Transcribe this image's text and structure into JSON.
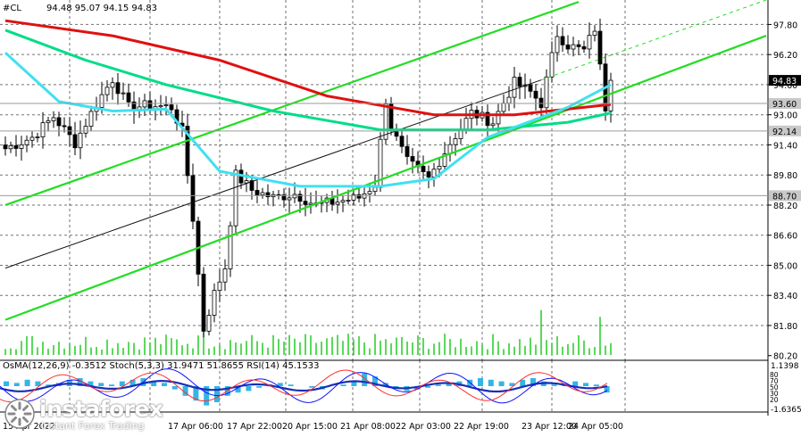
{
  "chart_data": {
    "type": "candlestick",
    "symbol": "#CL",
    "ohlc_header": "94.48 95.07 94.15 94.83",
    "y_ticks": [
      97.8,
      96.2,
      94.6,
      93.0,
      91.4,
      89.8,
      88.2,
      86.6,
      85.0,
      83.4,
      81.8,
      80.2
    ],
    "y_tick_labels": [
      "97.80",
      "96.20",
      "94.60",
      "93.00",
      "91.40",
      "89.80",
      "88.20",
      "86.60",
      "85.00",
      "83.40",
      "81.80",
      "80.20"
    ],
    "ylim": [
      79.95,
      99.1
    ],
    "x_labels": [
      "15 Apr 2022",
      "17 Apr 06:00",
      "17 Apr 22:00",
      "20 Apr 15:00",
      "21 Apr 08:00",
      "22 Apr 03:00",
      "22 Apr 19:00",
      "23 Apr 12:00",
      "24 Apr 05:00"
    ],
    "price_tags": [
      {
        "value": 94.83,
        "label": "94.83",
        "style": "black"
      },
      {
        "value": 93.6,
        "label": "93.60",
        "style": "gray"
      },
      {
        "value": 92.14,
        "label": "92.14",
        "style": "gray"
      },
      {
        "value": 88.7,
        "label": "88.70",
        "style": "gray"
      }
    ],
    "close_path": [
      [
        0,
        91.2
      ],
      [
        5,
        91.8
      ],
      [
        9,
        92.9
      ],
      [
        13,
        91.5
      ],
      [
        17,
        93.6
      ],
      [
        20,
        94.9
      ],
      [
        23,
        93.4
      ],
      [
        27,
        93.5
      ],
      [
        31,
        93.4
      ],
      [
        33,
        92.1
      ],
      [
        35,
        87.5
      ],
      [
        36,
        84.5
      ],
      [
        37,
        81.6
      ],
      [
        39,
        83.5
      ],
      [
        41,
        84.9
      ],
      [
        43,
        89.8
      ],
      [
        46,
        89.0
      ],
      [
        50,
        88.6
      ],
      [
        54,
        88.8
      ],
      [
        58,
        88.2
      ],
      [
        62,
        88.4
      ],
      [
        66,
        88.6
      ],
      [
        69,
        89.3
      ],
      [
        71,
        93.8
      ],
      [
        72,
        92.3
      ],
      [
        75,
        90.5
      ],
      [
        79,
        89.6
      ],
      [
        83,
        91.5
      ],
      [
        87,
        93.1
      ],
      [
        91,
        92.6
      ],
      [
        95,
        94.7
      ],
      [
        98,
        94.2
      ],
      [
        100,
        93.6
      ],
      [
        103,
        97.3
      ],
      [
        105,
        96.7
      ],
      [
        108,
        96.4
      ],
      [
        110,
        97.6
      ],
      [
        112,
        93.4
      ],
      [
        113,
        94.83
      ]
    ],
    "moving_averages": [
      {
        "color": "#e01010",
        "points": [
          [
            0,
            98.0
          ],
          [
            20,
            97.2
          ],
          [
            40,
            95.9
          ],
          [
            60,
            94.0
          ],
          [
            80,
            93.0
          ],
          [
            95,
            93.0
          ],
          [
            113,
            93.55
          ]
        ]
      },
      {
        "color": "#00dd88",
        "points": [
          [
            0,
            97.5
          ],
          [
            15,
            95.9
          ],
          [
            30,
            94.6
          ],
          [
            50,
            93.2
          ],
          [
            70,
            92.2
          ],
          [
            90,
            92.2
          ],
          [
            105,
            92.6
          ],
          [
            113,
            93.1
          ]
        ]
      },
      {
        "color": "#40e0f0",
        "points": [
          [
            0,
            96.3
          ],
          [
            10,
            93.7
          ],
          [
            20,
            93.2
          ],
          [
            30,
            93.3
          ],
          [
            40,
            90.0
          ],
          [
            55,
            89.2
          ],
          [
            70,
            89.2
          ],
          [
            80,
            89.6
          ],
          [
            90,
            91.8
          ],
          [
            105,
            93.4
          ],
          [
            113,
            94.6
          ]
        ]
      }
    ],
    "channel_lines": [
      {
        "color": "#22dd22",
        "points": [
          [
            0,
            88.2
          ],
          [
            107,
            99.0
          ]
        ]
      },
      {
        "color": "#22dd22",
        "points": [
          [
            0,
            82.1
          ],
          [
            142,
            97.2
          ]
        ]
      },
      {
        "color": "#111111",
        "points": [
          [
            0,
            84.85
          ],
          [
            100,
            94.85
          ]
        ]
      },
      {
        "color": "#22dd22",
        "dash": true,
        "points": [
          [
            100,
            94.85
          ],
          [
            142,
            99.1
          ]
        ]
      }
    ],
    "indicators_label": "OsMA(12,26,9) -0.3512  Stoch(5,3,3) 31.9471 51.8655  RSI(14) 45.1533",
    "indicator_scale": {
      "top": "1.1398",
      "bottom": "-1.6365",
      "ticks": [
        "80",
        "70",
        "50",
        "30",
        "20"
      ]
    },
    "osma": [
      0.3,
      0.2,
      0.4,
      0.3,
      0.1,
      0.2,
      0.4,
      0.5,
      0.3,
      0.2,
      0.1,
      0.3,
      0.4,
      0.5,
      0.3,
      0.2,
      -0.2,
      -0.6,
      -0.9,
      -1.2,
      -1.0,
      -0.6,
      -0.4,
      -0.3,
      -0.1,
      0.1,
      0.2,
      0.1,
      0.0,
      -0.1,
      -0.2,
      0.0,
      0.1,
      0.3,
      0.8,
      0.6,
      0.2,
      -0.1,
      -0.3,
      -0.2,
      -0.1,
      0.1,
      0.2,
      0.3,
      0.4,
      0.5,
      0.4,
      0.3,
      0.2,
      0.4,
      0.5,
      0.3,
      0.1,
      0.2,
      0.3,
      0.2,
      0.1,
      -0.4
    ]
  },
  "watermark": {
    "brand": "instaforex",
    "tagline": "Instant Forex Trading"
  }
}
